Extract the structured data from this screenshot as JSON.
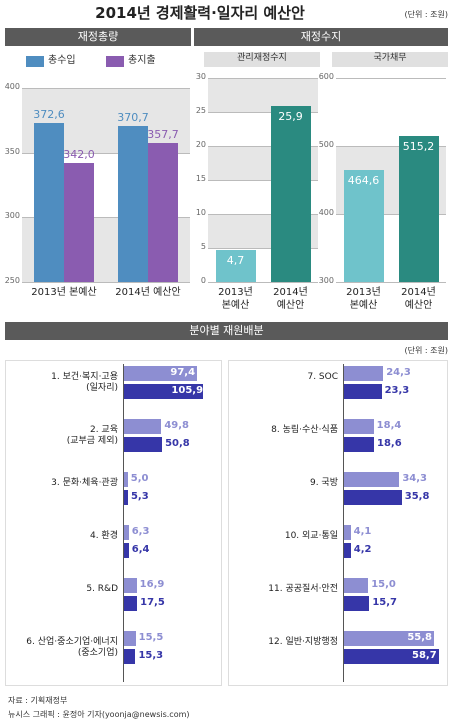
{
  "header": {
    "title": "2014년 경제활력·일자리 예산안",
    "unit": "(단위 : 조원)"
  },
  "sections": {
    "balance": "재정수지",
    "allocation": "분야별 재원배분",
    "allocation_unit": "(단위 : 조원)"
  },
  "chart_data": [
    {
      "type": "bar",
      "title": "재정총량",
      "categories": [
        "2013년 본예산",
        "2014년 예산안"
      ],
      "series": [
        {
          "name": "총수입",
          "color": "#4f8dc0",
          "values": [
            372.6,
            370.7
          ],
          "value_labels": [
            "372,6",
            "370,7"
          ]
        },
        {
          "name": "총지출",
          "color": "#8a5cb0",
          "values": [
            342.0,
            357.7
          ],
          "value_labels": [
            "342,0",
            "357,7"
          ]
        }
      ],
      "ylim": [
        250,
        400
      ],
      "yticks": [
        250,
        300,
        350,
        400
      ],
      "grid": true
    },
    {
      "type": "bar",
      "title": "관리재정수지",
      "categories": [
        "2013년\n본예산",
        "2014년\n예산안"
      ],
      "values": [
        4.7,
        25.9
      ],
      "value_labels": [
        "4,7",
        "25,9"
      ],
      "colors": [
        "#6fc3cb",
        "#2a8a80"
      ],
      "ylim": [
        0,
        30
      ],
      "yticks": [
        0,
        5,
        10,
        15,
        20,
        25,
        30
      ],
      "grid": true
    },
    {
      "type": "bar",
      "title": "국가채무",
      "categories": [
        "2013년\n본예산",
        "2014년\n예산안"
      ],
      "values": [
        464.6,
        515.2
      ],
      "value_labels": [
        "464,6",
        "515,2"
      ],
      "colors": [
        "#6fc3cb",
        "#2a8a80"
      ],
      "ylim": [
        300,
        600
      ],
      "yticks": [
        300,
        400,
        500,
        600
      ],
      "grid": true
    },
    {
      "type": "barh",
      "categories": [
        "1. 보건·복지·고용\n(일자리)",
        "2. 교육\n(교부금 제외)",
        "3. 문화·체육·관광",
        "4. 환경",
        "5. R&D",
        "6. 산업·중소기업·에너지\n(중소기업)"
      ],
      "series": [
        {
          "color": "#8d8ed2",
          "values": [
            97.4,
            49.8,
            5.0,
            6.3,
            16.9,
            15.5
          ],
          "value_labels": [
            "97,4",
            "49,8",
            "5,0",
            "6,3",
            "16,9",
            "15,5"
          ]
        },
        {
          "color": "#3636a8",
          "values": [
            105.9,
            50.8,
            5.3,
            6.4,
            17.5,
            15.3
          ],
          "value_labels": [
            "105,9",
            "50,8",
            "5,3",
            "6,4",
            "17,5",
            "15,3"
          ]
        }
      ],
      "xlim": [
        0,
        120
      ]
    },
    {
      "type": "barh",
      "categories": [
        "7. SOC",
        "8. 농림·수산·식품",
        "9. 국방",
        "10. 외교·통일",
        "11. 공공질서·안전",
        "12. 일반·지방행정"
      ],
      "series": [
        {
          "color": "#8d8ed2",
          "values": [
            24.3,
            18.4,
            34.3,
            4.1,
            15.0,
            55.8
          ],
          "value_labels": [
            "24,3",
            "18,4",
            "34,3",
            "4,1",
            "15,0",
            "55,8"
          ]
        },
        {
          "color": "#3636a8",
          "values": [
            23.3,
            18.6,
            35.8,
            4.2,
            15.7,
            58.7
          ],
          "value_labels": [
            "23,3",
            "18,6",
            "35,8",
            "4,2",
            "15,7",
            "58,7"
          ]
        }
      ],
      "xlim": [
        0,
        62
      ]
    }
  ],
  "footer": {
    "source": "자료 : 기획재정부",
    "credit": "뉴시스 그래픽 : 윤정아 기자(yoonja@newsis.com)"
  }
}
